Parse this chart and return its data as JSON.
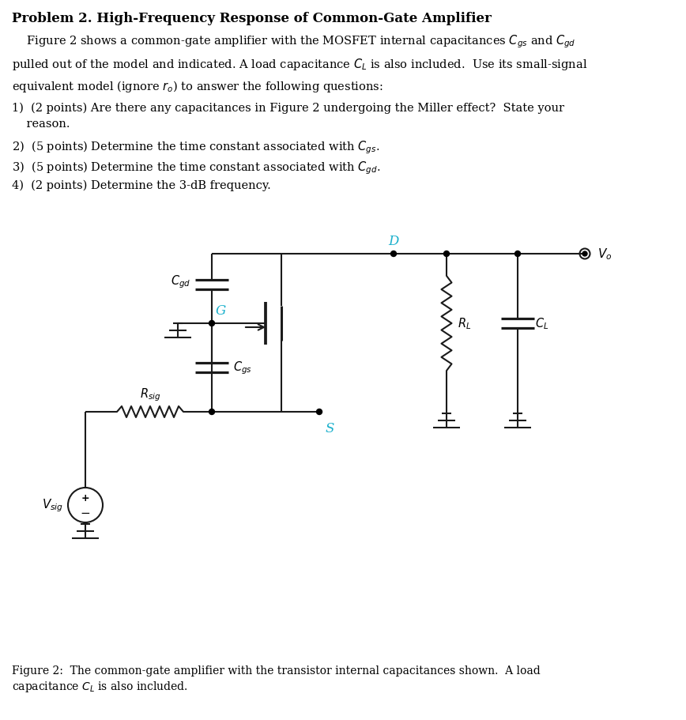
{
  "title": "Problem 2. High-Frequency Response of Common-Gate Amplifier",
  "bg_color": "#ffffff",
  "text_color": "#000000",
  "cyan_color": "#1ab0cc",
  "line_color": "#1a1a1a",
  "lw": 1.5,
  "caption_line1": "Figure 2:  The common-gate amplifier with the transistor internal capacitances shown.  A load",
  "caption_line2": "capacitance $C_L$ is also included."
}
